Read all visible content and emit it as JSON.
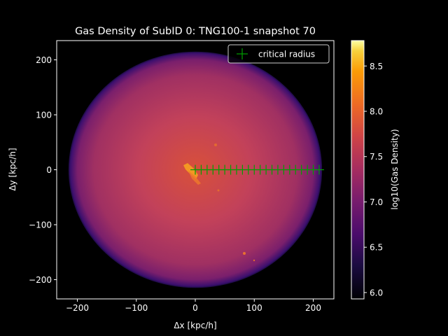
{
  "chart_data": {
    "type": "heatmap",
    "title": "Gas Density of SubID 0: TNG100-1 snapshot 70",
    "xlabel": "Δx [kpc/h]",
    "ylabel": "Δy [kpc/h]",
    "xlim": [
      -235,
      235
    ],
    "ylim": [
      -235,
      235
    ],
    "xticks": [
      -200,
      -100,
      0,
      100,
      200
    ],
    "yticks": [
      -200,
      -100,
      0,
      100,
      200
    ],
    "grid": false,
    "disk_radius": 215,
    "colormap": "inferno",
    "colorbar": {
      "label": "log10(Gas Density)",
      "range": [
        5.93,
        8.78
      ],
      "ticks": [
        "6.0",
        "6.5",
        "7.0",
        "7.5",
        "8.0",
        "8.5"
      ]
    },
    "legend": {
      "placement": "top-right",
      "entries": [
        "critical radius"
      ]
    },
    "series": [
      {
        "name": "critical radius",
        "marker": "+",
        "color": "#00a000",
        "x": [
          0,
          10,
          20,
          30,
          40,
          50,
          60,
          70,
          80,
          90,
          100,
          110,
          120,
          130,
          140,
          150,
          160,
          170,
          180,
          190,
          200,
          210
        ],
        "y": [
          0,
          0,
          0,
          0,
          0,
          0,
          0,
          0,
          0,
          0,
          0,
          0,
          0,
          0,
          0,
          0,
          0,
          0,
          0,
          0,
          0,
          0
        ]
      }
    ]
  }
}
